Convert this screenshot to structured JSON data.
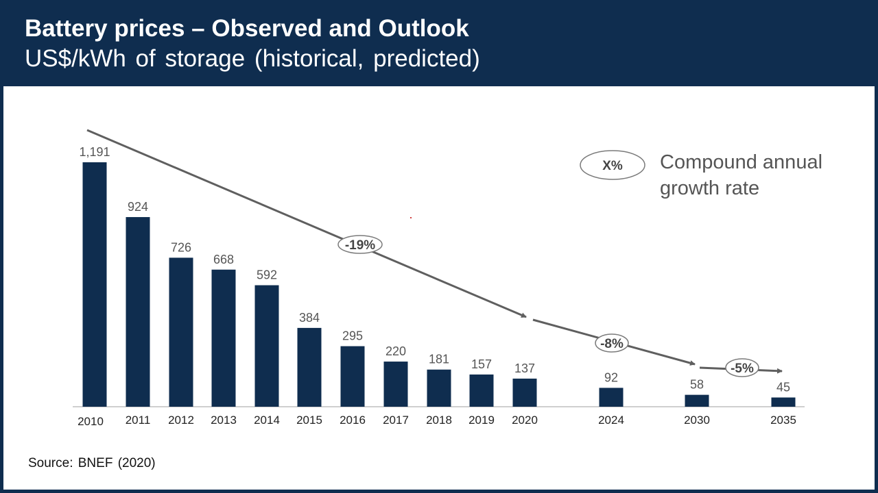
{
  "header": {
    "title": "Battery prices – Observed and Outlook",
    "subtitle": "US$/kWh of storage (historical, predicted)"
  },
  "source": "Source: BNEF (2020)",
  "legend": {
    "symbol": "X%",
    "text": "Compound annual growth rate"
  },
  "colors": {
    "header_bg": "#0f2d4f",
    "bar": "#0f2d4f",
    "trend_line": "#5f5f5f",
    "label_text": "#555555"
  },
  "chart_data": {
    "type": "bar",
    "categories": [
      "2010",
      "2011",
      "2012",
      "2013",
      "2014",
      "2015",
      "2016",
      "2017",
      "2018",
      "2019",
      "2020",
      "2024",
      "2030",
      "2035"
    ],
    "values": [
      1191,
      924,
      726,
      668,
      592,
      384,
      295,
      220,
      181,
      157,
      137,
      92,
      58,
      45
    ],
    "value_labels": [
      "1,191",
      "924",
      "726",
      "668",
      "592",
      "384",
      "295",
      "220",
      "181",
      "157",
      "137",
      "92",
      "58",
      "45"
    ],
    "ylim": [
      0,
      1191
    ],
    "grid": false,
    "legend_position": "top-right",
    "annotations": [
      {
        "label": "-19%",
        "from": "2010",
        "to": "2020"
      },
      {
        "label": "-8%",
        "from": "2020",
        "to": "2030"
      },
      {
        "label": "-5%",
        "from": "2030",
        "to": "2035"
      }
    ]
  }
}
